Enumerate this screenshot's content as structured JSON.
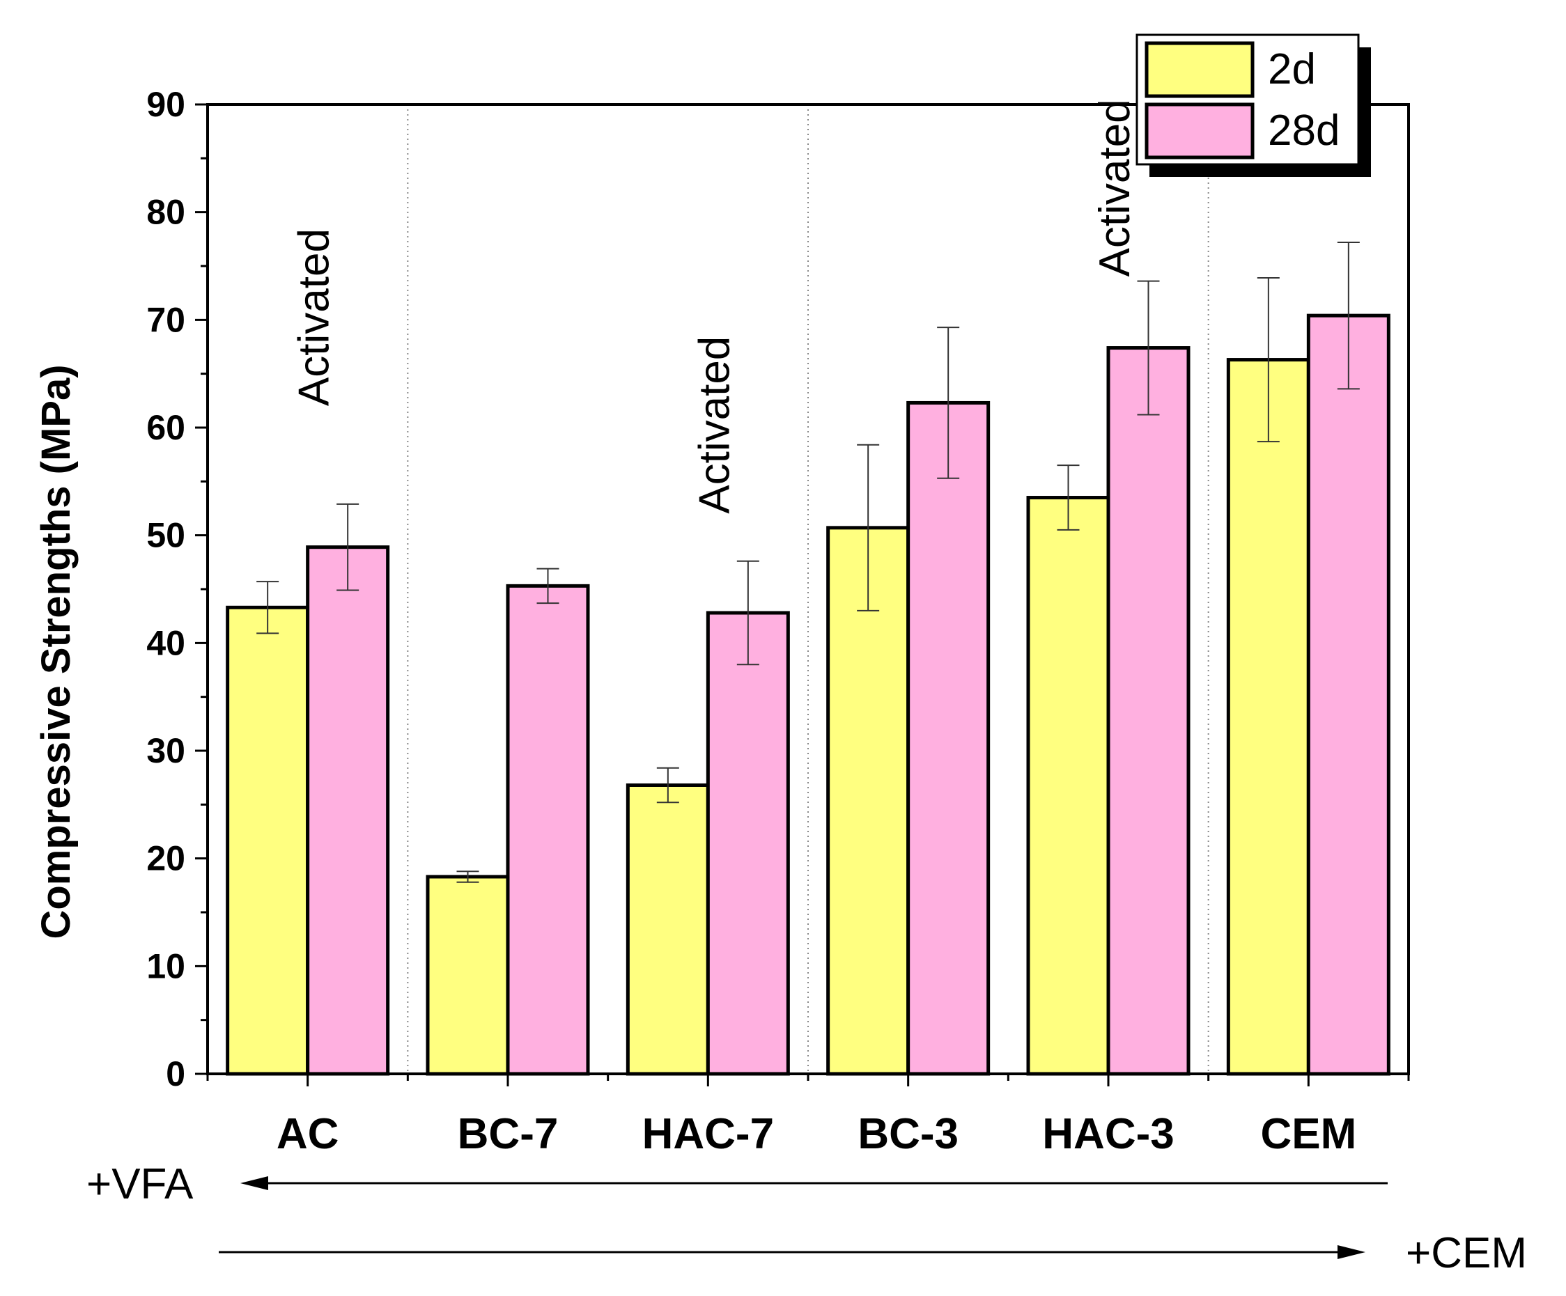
{
  "chart_data": {
    "type": "bar",
    "title": "",
    "xlabel": "",
    "ylabel": "Compressive Strengths (MPa)",
    "ylim": [
      0,
      90
    ],
    "yticks": [
      0,
      10,
      20,
      30,
      40,
      50,
      60,
      70,
      80,
      90
    ],
    "categories": [
      "AC",
      "BC-7",
      "HAC-7",
      "BC-3",
      "HAC-3",
      "CEM"
    ],
    "series": [
      {
        "name": "2d",
        "color": "#FFFF80",
        "values": [
          43.3,
          18.3,
          26.8,
          50.7,
          53.5,
          66.3
        ],
        "errors": [
          2.4,
          0.5,
          1.6,
          7.7,
          3.0,
          7.6
        ]
      },
      {
        "name": "28d",
        "color": "#FFB0E0",
        "values": [
          48.9,
          45.3,
          42.8,
          62.3,
          67.4,
          70.4
        ],
        "errors": [
          4.0,
          1.6,
          4.8,
          7.0,
          6.2,
          6.8
        ]
      }
    ],
    "legend_position": "top-right",
    "group_dividers": [
      "AC|BC-7",
      "HAC-7|BC-3",
      "HAC-3|CEM"
    ],
    "annotations": [
      {
        "text": "Activated",
        "category": "AC",
        "value": 62
      },
      {
        "text": "Activated",
        "category": "HAC-7",
        "value": 52
      },
      {
        "text": "Activated",
        "category": "HAC-3",
        "value": 74
      }
    ],
    "arrows": [
      {
        "label": "+VFA",
        "direction": "left"
      },
      {
        "label": "+CEM",
        "direction": "right"
      }
    ]
  }
}
